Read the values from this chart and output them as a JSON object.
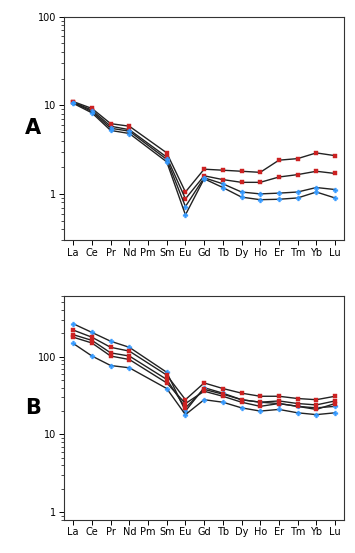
{
  "elements": [
    "La",
    "Ce",
    "Pr",
    "Nd",
    "Pm",
    "Sm",
    "Eu",
    "Gd",
    "Tb",
    "Dy",
    "Ho",
    "Er",
    "Tm",
    "Yb",
    "Lu"
  ],
  "panel_A": {
    "series": [
      {
        "color": "#cc2222",
        "marker": "s",
        "markersize": 3.0,
        "linewidth": 1.0,
        "values": [
          11.0,
          9.2,
          6.2,
          5.8,
          null,
          2.9,
          1.05,
          1.9,
          1.85,
          1.8,
          1.75,
          2.4,
          2.5,
          2.9,
          2.7
        ]
      },
      {
        "color": "#cc2222",
        "marker": "s",
        "markersize": 3.0,
        "linewidth": 1.0,
        "values": [
          10.8,
          8.8,
          5.8,
          5.3,
          null,
          2.6,
          0.88,
          1.6,
          1.45,
          1.35,
          1.35,
          1.55,
          1.65,
          1.8,
          1.7
        ]
      },
      {
        "color": "#3399ff",
        "marker": "P",
        "markersize": 3.5,
        "linewidth": 1.0,
        "values": [
          10.7,
          8.5,
          5.5,
          5.1,
          null,
          2.45,
          0.72,
          1.52,
          1.3,
          1.05,
          1.0,
          1.02,
          1.05,
          1.18,
          1.12
        ]
      },
      {
        "color": "#3399ff",
        "marker": "P",
        "markersize": 3.5,
        "linewidth": 1.0,
        "values": [
          10.5,
          8.2,
          5.2,
          4.8,
          null,
          2.3,
          0.58,
          1.48,
          1.18,
          0.92,
          0.86,
          0.87,
          0.9,
          1.05,
          0.9
        ]
      }
    ],
    "ylim": [
      0.3,
      100
    ],
    "label": "A"
  },
  "panel_B": {
    "series": [
      {
        "color": "#3399ff",
        "marker": "P",
        "markersize": 3.5,
        "linewidth": 1.0,
        "values": [
          265,
          205,
          158,
          132,
          null,
          63,
          20,
          40,
          34,
          28,
          26,
          25,
          23,
          22,
          23
        ]
      },
      {
        "color": "#cc2222",
        "marker": "s",
        "markersize": 3.0,
        "linewidth": 1.0,
        "values": [
          220,
          178,
          132,
          118,
          null,
          58,
          28,
          46,
          39,
          34,
          31,
          31,
          29,
          28,
          31
        ]
      },
      {
        "color": "#cc2222",
        "marker": "s",
        "markersize": 3.0,
        "linewidth": 1.0,
        "values": [
          192,
          162,
          112,
          102,
          null,
          51,
          22,
          38,
          33,
          28,
          26,
          27,
          25,
          24,
          27
        ]
      },
      {
        "color": "#3399ff",
        "marker": "P",
        "markersize": 3.5,
        "linewidth": 1.0,
        "values": [
          148,
          102,
          77,
          72,
          null,
          39,
          18,
          28,
          26,
          22,
          20,
          21,
          19,
          18,
          19
        ]
      },
      {
        "color": "#cc2222",
        "marker": "s",
        "markersize": 3.0,
        "linewidth": 1.0,
        "values": [
          178,
          150,
          102,
          92,
          null,
          46,
          25,
          36,
          31,
          26,
          23,
          25,
          23,
          21,
          25
        ]
      }
    ],
    "ylim": [
      0.8,
      600
    ],
    "label": "B"
  },
  "line_color": "#222222",
  "fig_width": 3.55,
  "fig_height": 5.53,
  "dpi": 100,
  "tick_fontsize": 7.0,
  "label_fontsize": 15
}
